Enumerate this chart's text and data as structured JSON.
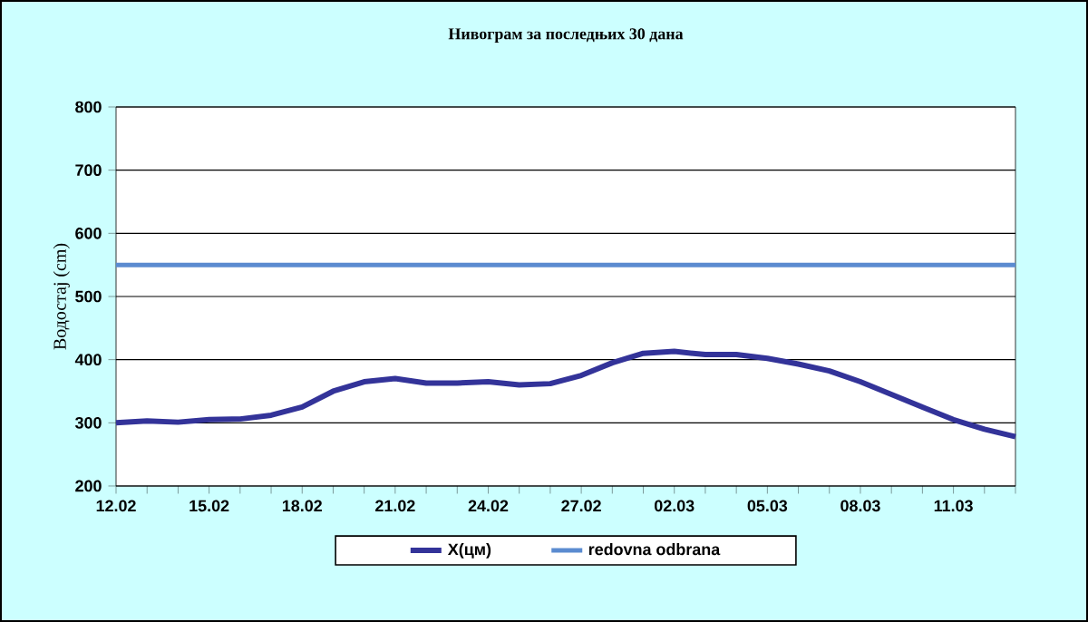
{
  "chart_data": {
    "type": "line",
    "title": "Нивограм за последњих 30 дана",
    "ylabel": "Водостај (cm)",
    "categories": [
      "12.02",
      null,
      null,
      "15.02",
      null,
      null,
      "18.02",
      null,
      null,
      "21.02",
      null,
      null,
      "24.02",
      null,
      null,
      "27.02",
      null,
      null,
      "02.03",
      null,
      null,
      "05.03",
      null,
      null,
      "08.03",
      null,
      null,
      "11.03",
      null,
      null
    ],
    "series": [
      {
        "name": "X(цм)",
        "color": "#333399",
        "values": [
          300,
          303,
          301,
          305,
          306,
          312,
          325,
          350,
          365,
          370,
          363,
          363,
          365,
          360,
          362,
          375,
          395,
          410,
          413,
          408,
          408,
          402,
          393,
          382,
          365,
          345,
          325,
          305,
          290,
          278
        ]
      }
    ],
    "ref_lines": [
      {
        "axis": "y",
        "value": 550,
        "label": "redovna odbrana",
        "color": "#5b8bd0"
      }
    ],
    "ylim": [
      200,
      800
    ],
    "yticks": [
      200,
      300,
      400,
      500,
      600,
      700,
      800
    ],
    "grid": "y",
    "legend": "bottom"
  }
}
